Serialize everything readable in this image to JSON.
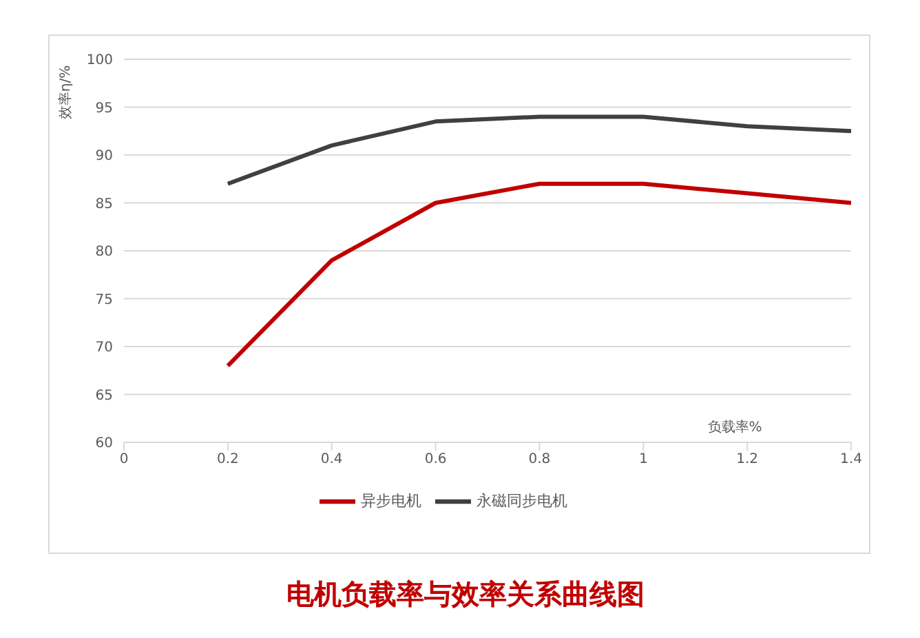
{
  "chart_data": {
    "type": "line",
    "title": "电机负载率与效率关系曲线图",
    "xlabel": "负载率%",
    "ylabel": "效率η/%",
    "x": [
      0.2,
      0.4,
      0.6,
      0.8,
      1,
      1.2,
      1.4
    ],
    "series": [
      {
        "name": "永磁同步电机",
        "color": "#404040",
        "values": [
          87,
          91,
          93.5,
          94,
          94,
          93,
          92.5
        ]
      },
      {
        "name": "异步电机",
        "color": "#c00000",
        "values": [
          68,
          79,
          85,
          87,
          87,
          86,
          85
        ]
      }
    ],
    "xlim": [
      0,
      1.4
    ],
    "xticks": [
      0,
      {
        "value": 0.2,
        "label": "0.2"
      },
      {
        "value": 0.4,
        "label": "0.4"
      },
      {
        "value": 0.6,
        "label": "0.6"
      },
      {
        "value": 0.8,
        "label": "0.8"
      },
      1,
      {
        "value": 1.2,
        "label": "1.2"
      },
      {
        "value": 1.4,
        "label": "1.4"
      }
    ],
    "ylim": [
      60,
      100
    ],
    "yticks": [
      60,
      65,
      70,
      75,
      80,
      85,
      90,
      95,
      100
    ],
    "grid": "y",
    "legend": "bottom"
  }
}
